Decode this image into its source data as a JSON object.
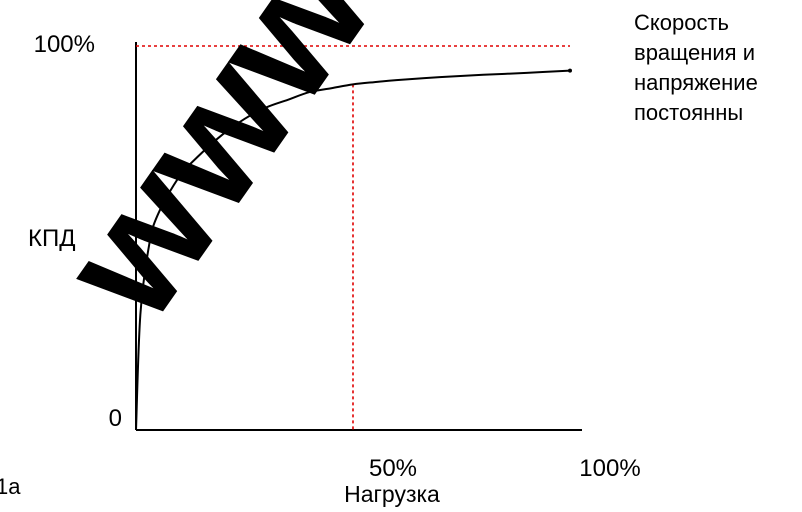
{
  "chart_data": {
    "type": "line",
    "title": "",
    "xlabel": "Нагрузка",
    "ylabel": "КПД",
    "x_ticks": [
      "50%",
      "100%"
    ],
    "x_tick_values": [
      50,
      100
    ],
    "y_ticks": [
      "0",
      "100%"
    ],
    "y_tick_values": [
      0,
      100
    ],
    "xlim": [
      0,
      100
    ],
    "ylim": [
      0,
      100
    ],
    "grid": false,
    "series": [
      {
        "x": [
          0,
          1,
          3,
          5,
          10,
          15,
          20,
          25,
          30,
          35,
          40,
          45,
          50,
          55,
          60,
          70,
          80,
          90,
          100
        ],
        "y": [
          0,
          30,
          48,
          56,
          66,
          72,
          77,
          81,
          84,
          86,
          88,
          89,
          90,
          90.6,
          91.1,
          91.9,
          92.5,
          93.0,
          93.6
        ],
        "color": "#000000"
      }
    ],
    "reference_lines": [
      {
        "orientation": "horizontal",
        "value": 100,
        "color": "#e00000",
        "style": "dashed"
      },
      {
        "orientation": "vertical",
        "value": 50,
        "color": "#e00000",
        "style": "dashed"
      }
    ],
    "annotation": "Скорость\nвращения и\nнапряжение\nпостоянны",
    "corner_label": "1а"
  },
  "watermark": {
    "text": "www",
    "color": "#ff0000"
  }
}
